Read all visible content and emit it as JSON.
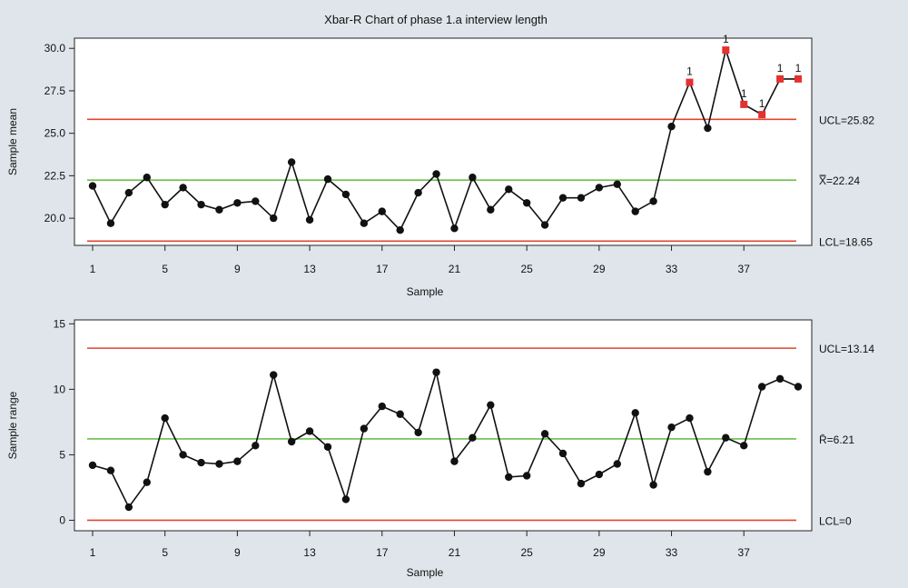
{
  "title": "Xbar-R Chart of phase 1.a interview length",
  "colors": {
    "background": "#dfe5ea",
    "plot_bg": "#ffffff",
    "limit_line": "#e0452f",
    "center_line": "#6cc04a",
    "series": "#111111",
    "out_of_control": "#e53030"
  },
  "chart_data": [
    {
      "type": "line",
      "title": "Xbar-R Chart of phase 1.a interview length",
      "xlabel": "Sample",
      "ylabel": "Sample mean",
      "xlim": [
        1,
        40
      ],
      "ylim": [
        18.4,
        30.6
      ],
      "x_ticks": [
        1,
        5,
        9,
        13,
        17,
        21,
        25,
        29,
        33,
        37
      ],
      "y_ticks": [
        "20.0",
        "22.5",
        "25.0",
        "27.5",
        "30.0"
      ],
      "grid": false,
      "x": [
        1,
        2,
        3,
        4,
        5,
        6,
        7,
        8,
        9,
        10,
        11,
        12,
        13,
        14,
        15,
        16,
        17,
        18,
        19,
        20,
        21,
        22,
        23,
        24,
        25,
        26,
        27,
        28,
        29,
        30,
        31,
        32,
        33,
        34,
        35,
        36,
        37,
        38,
        39,
        40
      ],
      "values": [
        21.9,
        19.7,
        21.5,
        22.4,
        20.8,
        21.8,
        20.8,
        20.5,
        20.9,
        21.0,
        20.0,
        23.3,
        19.9,
        22.3,
        21.4,
        19.7,
        20.4,
        19.3,
        21.5,
        22.6,
        19.4,
        22.4,
        20.5,
        21.7,
        20.9,
        19.6,
        21.2,
        21.2,
        21.8,
        22.0,
        20.4,
        21.0,
        25.4,
        28.0,
        25.3,
        29.9,
        26.7,
        26.1,
        28.2,
        28.2
      ],
      "out_of_control": [
        34,
        36,
        37,
        38,
        39,
        40
      ],
      "flag_label": "1",
      "limits": [
        {
          "kind": "ucl",
          "value": 25.82,
          "label": "UCL=25.82"
        },
        {
          "kind": "center",
          "value": 22.24,
          "label": "X̿=22.24"
        },
        {
          "kind": "lcl",
          "value": 18.65,
          "label": "LCL=18.65"
        }
      ]
    },
    {
      "type": "line",
      "xlabel": "Sample",
      "ylabel": "Sample range",
      "xlim": [
        1,
        40
      ],
      "ylim": [
        -0.8,
        15.3
      ],
      "x_ticks": [
        1,
        5,
        9,
        13,
        17,
        21,
        25,
        29,
        33,
        37
      ],
      "y_ticks": [
        "0",
        "5",
        "10",
        "15"
      ],
      "grid": false,
      "x": [
        1,
        2,
        3,
        4,
        5,
        6,
        7,
        8,
        9,
        10,
        11,
        12,
        13,
        14,
        15,
        16,
        17,
        18,
        19,
        20,
        21,
        22,
        23,
        24,
        25,
        26,
        27,
        28,
        29,
        30,
        31,
        32,
        33,
        34,
        35,
        36,
        37,
        38,
        39,
        40
      ],
      "values": [
        4.2,
        3.8,
        1.0,
        2.9,
        7.8,
        5.0,
        4.4,
        4.3,
        4.5,
        5.7,
        11.1,
        6.0,
        6.8,
        5.6,
        1.6,
        7.0,
        8.7,
        8.1,
        6.7,
        11.3,
        4.5,
        6.3,
        8.8,
        3.3,
        3.4,
        6.6,
        5.1,
        2.8,
        3.5,
        4.3,
        8.2,
        2.7,
        7.1,
        7.8,
        3.7,
        6.3,
        5.7,
        10.2,
        10.8,
        10.2
      ],
      "out_of_control": [],
      "limits": [
        {
          "kind": "ucl",
          "value": 13.14,
          "label": "UCL=13.14"
        },
        {
          "kind": "center",
          "value": 6.21,
          "label": "R̄=6.21"
        },
        {
          "kind": "lcl",
          "value": 0,
          "label": "LCL=0"
        }
      ]
    }
  ]
}
